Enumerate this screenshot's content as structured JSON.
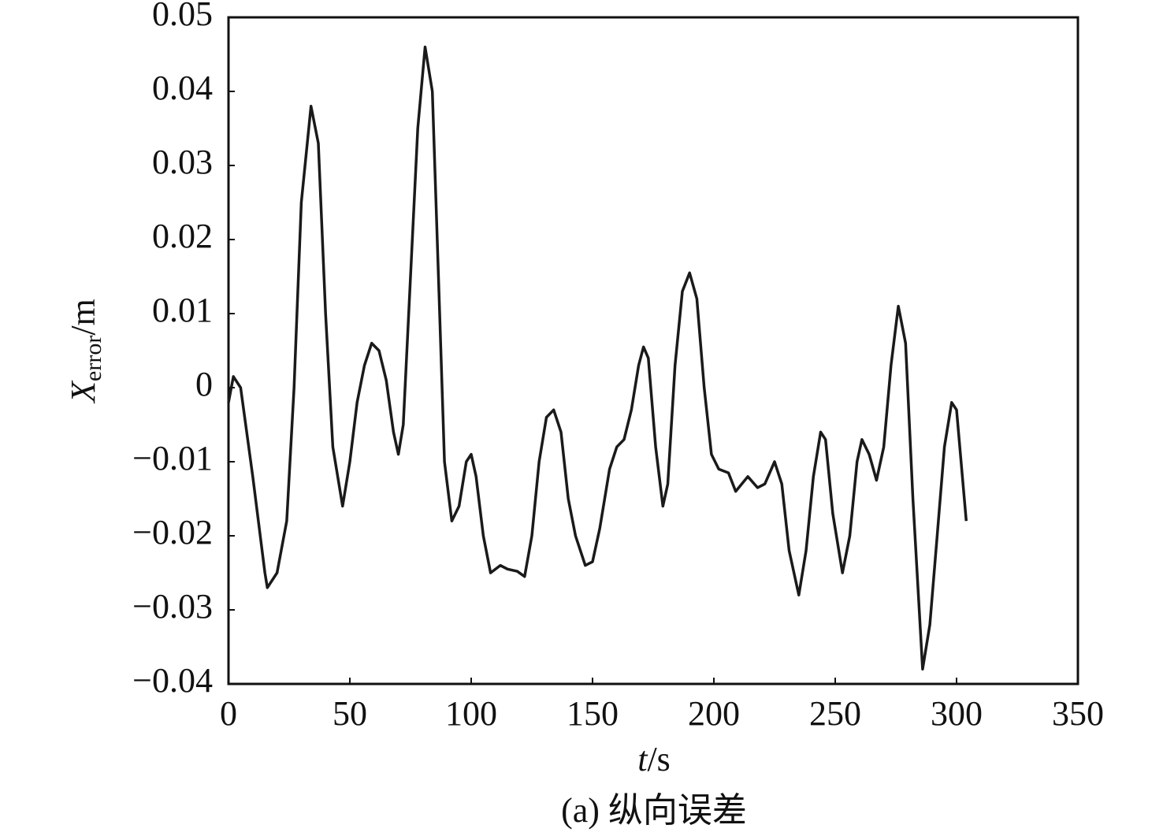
{
  "chart_data": {
    "type": "line",
    "xlabel": {
      "symbol": "t",
      "unit": "/s"
    },
    "ylabel": {
      "symbol": "X",
      "subscript": "error",
      "unit": "/m"
    },
    "caption": "(a) 纵向误差",
    "x": [
      0,
      2,
      5,
      10,
      15,
      16,
      20,
      24,
      27,
      30,
      34,
      37,
      40,
      43,
      47,
      50,
      53,
      56,
      59,
      62,
      65,
      68,
      70,
      72,
      75,
      78,
      81,
      84,
      87,
      89,
      92,
      95,
      98,
      100,
      102,
      105,
      108,
      112,
      115,
      119,
      122,
      125,
      128,
      131,
      134,
      137,
      140,
      143,
      147,
      150,
      153,
      157,
      160,
      163,
      166,
      169,
      171,
      173,
      176,
      179,
      181,
      184,
      187,
      190,
      193,
      196,
      199,
      202,
      206,
      209,
      214,
      218,
      221,
      225,
      228,
      231,
      235,
      238,
      241,
      244,
      246,
      249,
      253,
      256,
      259,
      261,
      264,
      267,
      270,
      273,
      276,
      279,
      282,
      286,
      289,
      292,
      295,
      298,
      300,
      304
    ],
    "series": [
      {
        "color": "#1a1a1a",
        "values": [
          -0.002,
          0.0015,
          0,
          -0.012,
          -0.025,
          -0.027,
          -0.025,
          -0.018,
          0,
          0.025,
          0.038,
          0.033,
          0.01,
          -0.008,
          -0.016,
          -0.01,
          -0.002,
          0.003,
          0.006,
          0.005,
          0.001,
          -0.006,
          -0.009,
          -0.005,
          0.015,
          0.035,
          0.046,
          0.04,
          0.01,
          -0.01,
          -0.018,
          -0.016,
          -0.01,
          -0.009,
          -0.012,
          -0.02,
          -0.025,
          -0.024,
          -0.0245,
          -0.0248,
          -0.0255,
          -0.02,
          -0.01,
          -0.004,
          -0.003,
          -0.006,
          -0.015,
          -0.02,
          -0.024,
          -0.0235,
          -0.019,
          -0.011,
          -0.008,
          -0.007,
          -0.003,
          0.003,
          0.0055,
          0.004,
          -0.008,
          -0.016,
          -0.013,
          0.003,
          0.013,
          0.0155,
          0.012,
          0,
          -0.009,
          -0.011,
          -0.0115,
          -0.014,
          -0.012,
          -0.0135,
          -0.013,
          -0.01,
          -0.013,
          -0.022,
          -0.028,
          -0.022,
          -0.012,
          -0.006,
          -0.007,
          -0.017,
          -0.025,
          -0.02,
          -0.01,
          -0.007,
          -0.009,
          -0.0125,
          -0.008,
          0.003,
          0.011,
          0.006,
          -0.015,
          -0.038,
          -0.032,
          -0.02,
          -0.008,
          -0.002,
          -0.003,
          -0.018
        ]
      }
    ],
    "xlim": [
      0,
      350
    ],
    "xticks": [
      0,
      50,
      100,
      150,
      200,
      250,
      300,
      350
    ],
    "ylim": [
      -0.04,
      0.05
    ],
    "yticks": [
      {
        "value": -0.04,
        "label": "−0.04"
      },
      {
        "value": -0.03,
        "label": "−0.03"
      },
      {
        "value": -0.02,
        "label": "−0.02"
      },
      {
        "value": -0.01,
        "label": "−0.01"
      },
      0,
      0.01,
      0.02,
      0.03,
      0.04,
      0.05
    ],
    "grid": false
  }
}
